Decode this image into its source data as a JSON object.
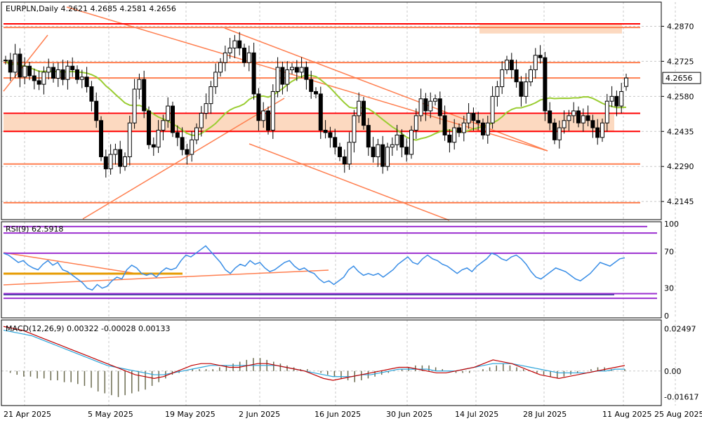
{
  "chart_data": [
    {
      "type": "candlestick",
      "title": "EURPLN,Daily  4.2621 4.2685 4.2581 4.2656",
      "symbol": "EURPLN",
      "timeframe": "Daily",
      "ohlc_last": {
        "open": 4.2621,
        "high": 4.2685,
        "low": 4.2581,
        "close": 4.2656
      },
      "price_ticks": [
        "4.2870",
        "4.2725",
        "4.2580",
        "4.2435",
        "4.2290",
        "4.2145"
      ],
      "current_price": "4.2656",
      "x_ticks": [
        "21 Apr 2025",
        "5 May 2025",
        "19 May 2025",
        "2 Jun 2025",
        "16 Jun 2025",
        "30 Jun 2025",
        "14 Jul 2025",
        "28 Jul 2025",
        "11 Aug 2025",
        "25 Aug 2025"
      ],
      "ylim": [
        4.207,
        4.297
      ],
      "closes": [
        4.273,
        4.268,
        4.2755,
        4.266,
        4.2705,
        4.2665,
        4.2645,
        4.263,
        4.268,
        4.27,
        4.2655,
        4.269,
        4.265,
        4.2705,
        4.269,
        4.265,
        4.266,
        4.262,
        4.256,
        4.248,
        4.233,
        4.228,
        4.234,
        4.236,
        4.229,
        4.233,
        4.247,
        4.261,
        4.265,
        4.252,
        4.238,
        4.237,
        4.244,
        4.248,
        4.254,
        4.243,
        4.241,
        4.236,
        4.234,
        4.24,
        4.245,
        4.251,
        4.255,
        4.262,
        4.268,
        4.272,
        4.276,
        4.278,
        4.281,
        4.278,
        4.272,
        4.276,
        4.259,
        4.248,
        4.252,
        4.244,
        4.26,
        4.27,
        4.263,
        4.269,
        4.27,
        4.268,
        4.27,
        4.265,
        4.26,
        4.259,
        4.244,
        4.243,
        4.241,
        4.237,
        4.233,
        4.23,
        4.239,
        4.25,
        4.256,
        4.246,
        4.237,
        4.233,
        4.238,
        4.229,
        4.237,
        4.238,
        4.242,
        4.237,
        4.234,
        4.244,
        4.25,
        4.257,
        4.252,
        4.256,
        4.257,
        4.25,
        4.242,
        4.239,
        4.245,
        4.243,
        4.247,
        4.251,
        4.248,
        4.247,
        4.242,
        4.247,
        4.258,
        4.262,
        4.269,
        4.273,
        4.269,
        4.264,
        4.258,
        4.264,
        4.269,
        4.275,
        4.274,
        4.252,
        4.247,
        4.24,
        4.245,
        4.248,
        4.25,
        4.252,
        4.247,
        4.25,
        4.248,
        4.245,
        4.241,
        4.247,
        4.256,
        4.258,
        4.254,
        4.26,
        4.2656
      ],
      "price_lines": [
        {
          "price": 4.288,
          "color": "#ff0000"
        },
        {
          "price": 4.2865,
          "color": "#ff7f50"
        },
        {
          "price": 4.272,
          "color": "#ff7f50"
        },
        {
          "price": 4.2656,
          "color": "#ff7f50"
        },
        {
          "price": 4.251,
          "color": "#ff0000"
        },
        {
          "price": 4.2435,
          "color": "#ff0000"
        },
        {
          "price": 4.23,
          "color": "#ff7f50"
        },
        {
          "price": 4.214,
          "color": "#ff7f50"
        }
      ],
      "zones": [
        {
          "from": 4.284,
          "to": 4.288,
          "color": "#fcd9c0"
        },
        {
          "from": 4.2435,
          "to": 4.2505,
          "color": "#fcd9c0"
        }
      ],
      "ma_color": "#9acd32"
    },
    {
      "type": "line",
      "indicator": "RSI(9)",
      "label": "RSI(9) 62.5918",
      "ticks": [
        "100",
        "70",
        "30",
        "0"
      ],
      "ylim": [
        0,
        100
      ],
      "line_color": "#3a8ee6",
      "levels": [
        {
          "value": 97,
          "color": "#9b30d0"
        },
        {
          "value": 90,
          "color": "#9b30d0"
        },
        {
          "value": 68,
          "color": "#9b30d0"
        },
        {
          "value": 24,
          "color": "#9b30d0"
        },
        {
          "value": 19,
          "color": "#9b30d0"
        }
      ],
      "values": [
        68,
        66,
        62,
        58,
        60,
        55,
        52,
        50,
        56,
        60,
        55,
        58,
        50,
        48,
        44,
        40,
        36,
        30,
        28,
        34,
        30,
        32,
        38,
        42,
        40,
        50,
        55,
        52,
        46,
        44,
        46,
        42,
        48,
        52,
        50,
        52,
        60,
        66,
        64,
        68,
        72,
        76,
        70,
        64,
        58,
        50,
        46,
        52,
        56,
        54,
        60,
        56,
        58,
        52,
        48,
        50,
        54,
        58,
        60,
        54,
        50,
        52,
        48,
        46,
        40,
        36,
        38,
        34,
        38,
        42,
        50,
        54,
        48,
        44,
        46,
        44,
        46,
        42,
        46,
        50,
        56,
        60,
        64,
        58,
        56,
        62,
        66,
        62,
        60,
        56,
        54,
        50,
        46,
        50,
        52,
        48,
        54,
        58,
        62,
        68,
        66,
        62,
        60,
        64,
        66,
        62,
        56,
        48,
        42,
        40,
        44,
        48,
        52,
        50,
        48,
        44,
        40,
        38,
        42,
        46,
        52,
        58,
        56,
        54,
        58,
        62,
        63
      ]
    },
    {
      "type": "bar+line",
      "indicator": "MACD(12,26,9)",
      "label": "MACD(12,26,9) 0.00322 -0.00028 0.00133",
      "ticks": [
        "0.02497",
        "0.00",
        "-0.01617"
      ],
      "ylim": [
        -0.0186,
        0.0275
      ],
      "histogram_color": "#6b6b4f",
      "macd_color": "#c00000",
      "signal_color": "#29a3d9",
      "histogram": [
        0,
        -0.001,
        -0.002,
        -0.003,
        -0.003,
        -0.004,
        -0.004,
        -0.005,
        -0.005,
        -0.006,
        -0.006,
        -0.007,
        -0.008,
        -0.009,
        -0.011,
        -0.012,
        -0.013,
        -0.014,
        -0.013,
        -0.012,
        -0.011,
        -0.01,
        -0.008,
        -0.006,
        -0.004,
        -0.002,
        -0.001,
        0.0,
        0.001,
        0.001,
        0.001,
        0.001,
        0.002,
        0.003,
        0.004,
        0.005,
        0.006,
        0.007,
        0.007,
        0.006,
        0.005,
        0.004,
        0.003,
        0.002,
        0.001,
        0.001,
        0.0,
        -0.001,
        -0.002,
        -0.003,
        -0.004,
        -0.005,
        -0.006,
        -0.005,
        -0.004,
        -0.003,
        -0.002,
        -0.001,
        0.0,
        0.001,
        0.002,
        0.003,
        0.003,
        0.003,
        0.002,
        0.001,
        0.0,
        -0.001,
        -0.001,
        -0.001,
        0.0,
        0.001,
        0.002,
        0.003,
        0.004,
        0.003,
        0.002,
        0.001,
        0.0,
        -0.001,
        -0.002,
        -0.003,
        -0.004,
        -0.003,
        -0.002,
        -0.001,
        0.0,
        0.001,
        0.002,
        0.002,
        0.001,
        0.0,
        0.001
      ],
      "macd": [
        0.024,
        0.023,
        0.022,
        0.02,
        0.018,
        0.016,
        0.014,
        0.012,
        0.01,
        0.008,
        0.006,
        0.004,
        0.002,
        0.0,
        -0.002,
        -0.003,
        -0.004,
        -0.003,
        -0.001,
        0.001,
        0.003,
        0.004,
        0.004,
        0.003,
        0.002,
        0.002,
        0.003,
        0.004,
        0.004,
        0.003,
        0.002,
        0.001,
        0.0,
        -0.002,
        -0.004,
        -0.005,
        -0.004,
        -0.003,
        -0.002,
        -0.001,
        0.0,
        0.001,
        0.002,
        0.002,
        0.001,
        0.0,
        -0.001,
        -0.001,
        0.0,
        0.001,
        0.002,
        0.004,
        0.006,
        0.005,
        0.004,
        0.002,
        0.0,
        -0.002,
        -0.003,
        -0.004,
        -0.003,
        -0.002,
        -0.001,
        0.0,
        0.001,
        0.002,
        0.003
      ],
      "signal": [
        0.022,
        0.021,
        0.02,
        0.019,
        0.017,
        0.015,
        0.013,
        0.011,
        0.009,
        0.007,
        0.005,
        0.003,
        0.002,
        0.001,
        0.0,
        -0.001,
        -0.002,
        -0.002,
        -0.001,
        0.0,
        0.001,
        0.002,
        0.003,
        0.003,
        0.003,
        0.003,
        0.003,
        0.003,
        0.003,
        0.003,
        0.002,
        0.001,
        0.0,
        -0.001,
        -0.002,
        -0.003,
        -0.003,
        -0.003,
        -0.002,
        -0.002,
        -0.001,
        0.0,
        0.001,
        0.001,
        0.001,
        0.001,
        0.0,
        0.0,
        0.0,
        0.001,
        0.002,
        0.003,
        0.004,
        0.004,
        0.004,
        0.003,
        0.002,
        0.001,
        0.0,
        -0.001,
        -0.001,
        -0.001,
        -0.001,
        0.0,
        0.0,
        0.001,
        0.001
      ]
    }
  ]
}
